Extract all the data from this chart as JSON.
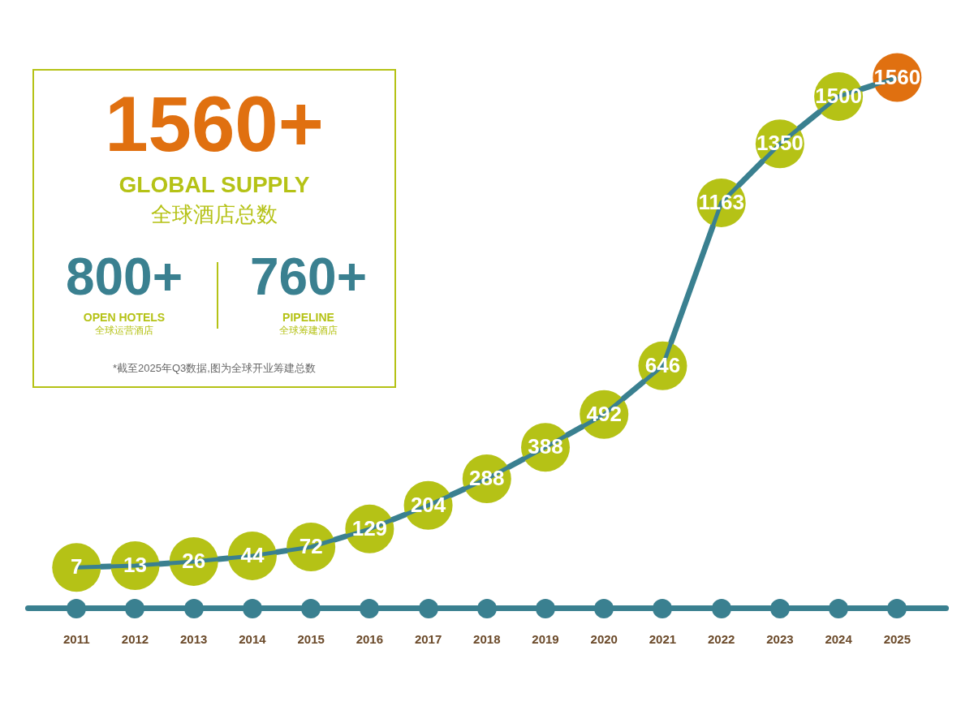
{
  "chart_data": {
    "type": "line",
    "categories": [
      "2011",
      "2012",
      "2013",
      "2014",
      "2015",
      "2016",
      "2017",
      "2018",
      "2019",
      "2020",
      "2021",
      "2022",
      "2023",
      "2024",
      "2025"
    ],
    "series": [
      {
        "color": "#3a8090",
        "colors": [
          "#b5c216",
          "#b5c216",
          "#b5c216",
          "#b5c216",
          "#b5c216",
          "#b5c216",
          "#b5c216",
          "#b5c216",
          "#b5c216",
          "#b5c216",
          "#b5c216",
          "#b5c216",
          "#b5c216",
          "#b5c216",
          "#e07010"
        ],
        "values": [
          7,
          13,
          26,
          44,
          72,
          129,
          204,
          288,
          388,
          492,
          646,
          1163,
          1350,
          1500,
          1560
        ]
      }
    ],
    "data_labels": true,
    "grid": false,
    "legend": false,
    "annotations": [
      "1560+",
      "GLOBAL SUPPLY",
      "全球酒店总数",
      "800+",
      "OPEN HOTELS",
      "全球运营酒店",
      "760+",
      "PIPELINE",
      "全球筹建酒店",
      "*截至2025年Q3数据,图为全球开业筹建总数"
    ]
  }
}
